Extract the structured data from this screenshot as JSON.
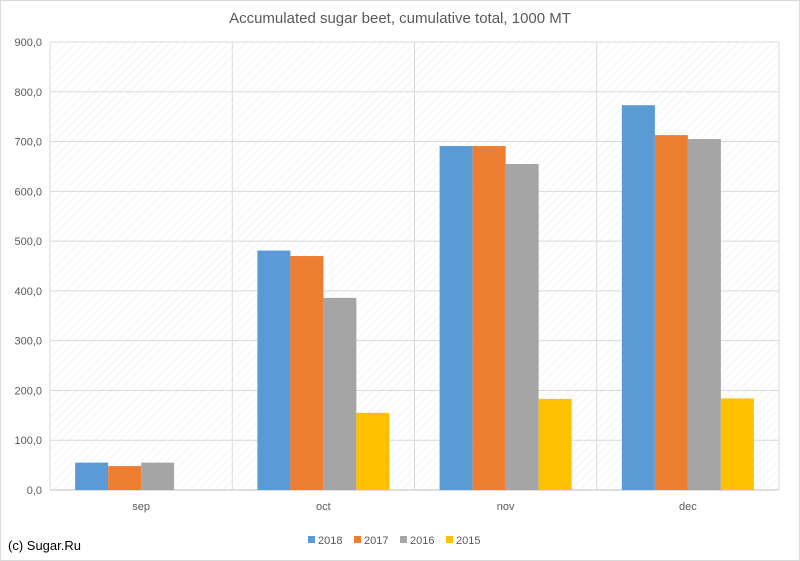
{
  "chart_data": {
    "type": "bar",
    "title": "Accumulated sugar beet, cumulative total, 1000 MT",
    "categories": [
      "sep",
      "oct",
      "nov",
      "dec"
    ],
    "series": [
      {
        "name": "2018",
        "color": "#5b9bd5",
        "values": [
          55,
          481,
          691,
          773
        ]
      },
      {
        "name": "2017",
        "color": "#ed7d31",
        "values": [
          48,
          470,
          691,
          713
        ]
      },
      {
        "name": "2016",
        "color": "#a5a5a5",
        "values": [
          55,
          386,
          655,
          705
        ]
      },
      {
        "name": "2015",
        "color": "#ffc000",
        "values": [
          null,
          155,
          183,
          184
        ]
      }
    ],
    "ylim": [
      0,
      900
    ],
    "yticks": [
      "0,0",
      "100,0",
      "200,0",
      "300,0",
      "400,0",
      "500,0",
      "600,0",
      "700,0",
      "800,0",
      "900,0"
    ],
    "grid": true,
    "legend": "bottom"
  },
  "credit": "(c) Sugar.Ru"
}
